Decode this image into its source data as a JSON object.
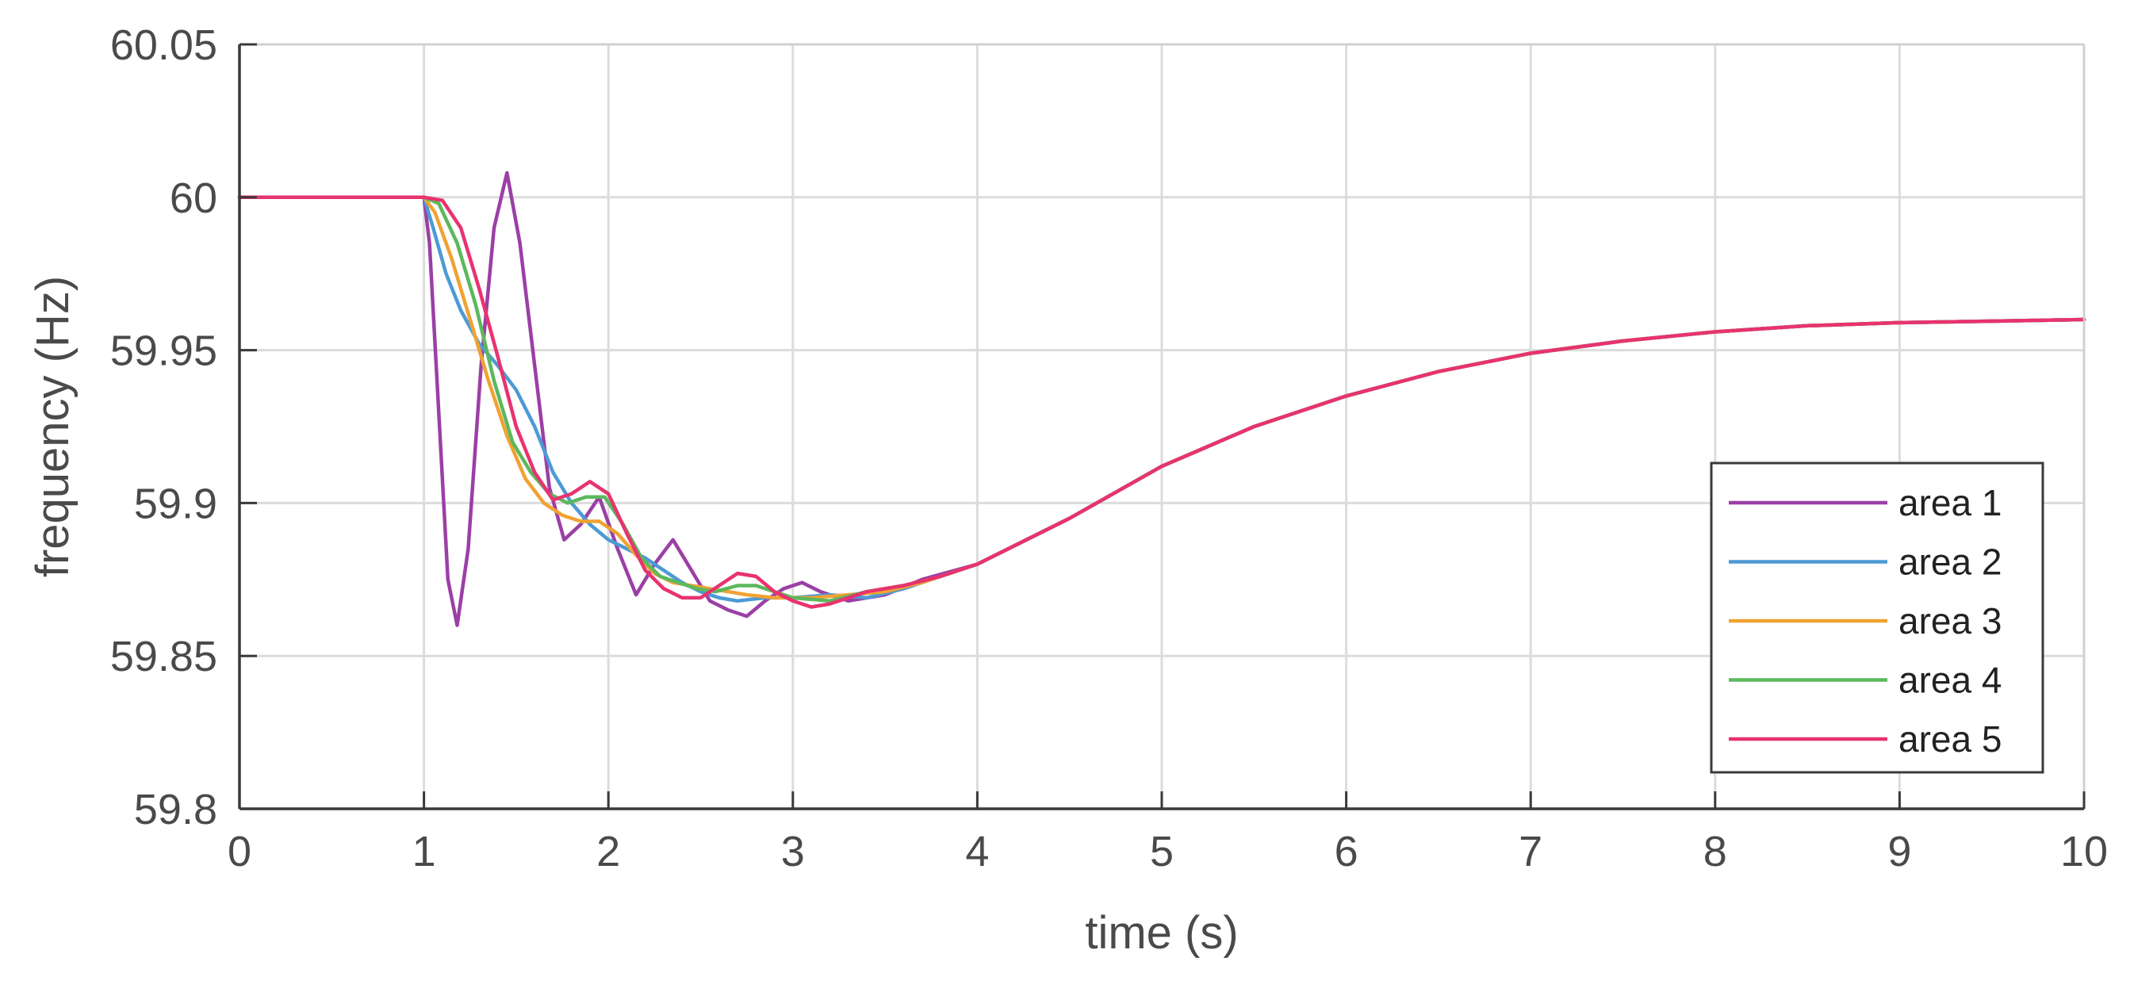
{
  "chart_data": {
    "type": "line",
    "title": "",
    "xlabel": "time (s)",
    "ylabel": "frequency (Hz)",
    "xlim": [
      0,
      10
    ],
    "ylim": [
      59.8,
      60.05
    ],
    "xticks": [
      0,
      1,
      2,
      3,
      4,
      5,
      6,
      7,
      8,
      9,
      10
    ],
    "xtick_labels": [
      "0",
      "1",
      "2",
      "3",
      "4",
      "5",
      "6",
      "7",
      "8",
      "9",
      "10"
    ],
    "yticks": [
      59.8,
      59.85,
      59.9,
      59.95,
      60,
      60.05
    ],
    "ytick_labels": [
      "59.8",
      "59.85",
      "59.9",
      "59.95",
      "60",
      "60.05"
    ],
    "grid": true,
    "legend_position": "lower-right",
    "series": [
      {
        "name": "area 1",
        "color": "#9b3fa6",
        "points": [
          [
            0,
            60
          ],
          [
            1,
            60
          ],
          [
            1.03,
            59.985
          ],
          [
            1.08,
            59.93
          ],
          [
            1.13,
            59.875
          ],
          [
            1.18,
            59.86
          ],
          [
            1.24,
            59.885
          ],
          [
            1.31,
            59.945
          ],
          [
            1.38,
            59.99
          ],
          [
            1.45,
            60.008
          ],
          [
            1.52,
            59.985
          ],
          [
            1.6,
            59.945
          ],
          [
            1.68,
            59.905
          ],
          [
            1.76,
            59.888
          ],
          [
            1.85,
            59.893
          ],
          [
            1.95,
            59.902
          ],
          [
            2.05,
            59.885
          ],
          [
            2.15,
            59.87
          ],
          [
            2.25,
            59.88
          ],
          [
            2.35,
            59.888
          ],
          [
            2.45,
            59.878
          ],
          [
            2.55,
            59.868
          ],
          [
            2.65,
            59.865
          ],
          [
            2.75,
            59.863
          ],
          [
            2.85,
            59.868
          ],
          [
            2.95,
            59.872
          ],
          [
            3.05,
            59.874
          ],
          [
            3.15,
            59.871
          ],
          [
            3.3,
            59.868
          ],
          [
            3.5,
            59.87
          ],
          [
            3.7,
            59.875
          ],
          [
            4,
            59.88
          ],
          [
            4.5,
            59.895
          ],
          [
            5,
            59.912
          ],
          [
            5.5,
            59.925
          ],
          [
            6,
            59.935
          ],
          [
            6.5,
            59.943
          ],
          [
            7,
            59.949
          ],
          [
            7.5,
            59.953
          ],
          [
            8,
            59.956
          ],
          [
            8.5,
            59.958
          ],
          [
            9,
            59.959
          ],
          [
            9.5,
            59.9595
          ],
          [
            10,
            59.96
          ]
        ]
      },
      {
        "name": "area 2",
        "color": "#4c9ad6",
        "points": [
          [
            0,
            60
          ],
          [
            1,
            60
          ],
          [
            1.05,
            59.99
          ],
          [
            1.12,
            59.975
          ],
          [
            1.2,
            59.963
          ],
          [
            1.3,
            59.952
          ],
          [
            1.4,
            59.945
          ],
          [
            1.5,
            59.937
          ],
          [
            1.6,
            59.925
          ],
          [
            1.7,
            59.91
          ],
          [
            1.8,
            59.9
          ],
          [
            1.9,
            59.893
          ],
          [
            2,
            59.888
          ],
          [
            2.1,
            59.885
          ],
          [
            2.2,
            59.882
          ],
          [
            2.3,
            59.878
          ],
          [
            2.4,
            59.874
          ],
          [
            2.5,
            59.871
          ],
          [
            2.6,
            59.869
          ],
          [
            2.7,
            59.868
          ],
          [
            2.85,
            59.869
          ],
          [
            3,
            59.869
          ],
          [
            3.2,
            59.87
          ],
          [
            3.4,
            59.869
          ],
          [
            3.6,
            59.872
          ],
          [
            3.8,
            59.876
          ],
          [
            4,
            59.88
          ],
          [
            4.5,
            59.895
          ],
          [
            5,
            59.912
          ],
          [
            5.5,
            59.925
          ],
          [
            6,
            59.935
          ],
          [
            6.5,
            59.943
          ],
          [
            7,
            59.949
          ],
          [
            7.5,
            59.953
          ],
          [
            8,
            59.956
          ],
          [
            8.5,
            59.958
          ],
          [
            9,
            59.959
          ],
          [
            9.5,
            59.9595
          ],
          [
            10,
            59.96
          ]
        ]
      },
      {
        "name": "area 3",
        "color": "#f0a232",
        "points": [
          [
            0,
            60
          ],
          [
            1,
            60
          ],
          [
            1.06,
            59.995
          ],
          [
            1.15,
            59.98
          ],
          [
            1.25,
            59.96
          ],
          [
            1.35,
            59.94
          ],
          [
            1.45,
            59.922
          ],
          [
            1.55,
            59.908
          ],
          [
            1.65,
            59.9
          ],
          [
            1.75,
            59.896
          ],
          [
            1.85,
            59.894
          ],
          [
            1.95,
            59.894
          ],
          [
            2.05,
            59.89
          ],
          [
            2.15,
            59.883
          ],
          [
            2.25,
            59.877
          ],
          [
            2.35,
            59.874
          ],
          [
            2.45,
            59.873
          ],
          [
            2.55,
            59.872
          ],
          [
            2.65,
            59.871
          ],
          [
            2.75,
            59.87
          ],
          [
            2.9,
            59.869
          ],
          [
            3.1,
            59.869
          ],
          [
            3.3,
            59.87
          ],
          [
            3.5,
            59.871
          ],
          [
            3.7,
            59.874
          ],
          [
            4,
            59.88
          ],
          [
            4.5,
            59.895
          ],
          [
            5,
            59.912
          ],
          [
            5.5,
            59.925
          ],
          [
            6,
            59.935
          ],
          [
            6.5,
            59.943
          ],
          [
            7,
            59.949
          ],
          [
            7.5,
            59.953
          ],
          [
            8,
            59.956
          ],
          [
            8.5,
            59.958
          ],
          [
            9,
            59.959
          ],
          [
            9.5,
            59.9595
          ],
          [
            10,
            59.96
          ]
        ]
      },
      {
        "name": "area 4",
        "color": "#5cb85c",
        "points": [
          [
            0,
            60
          ],
          [
            1,
            60
          ],
          [
            1.08,
            59.998
          ],
          [
            1.18,
            59.985
          ],
          [
            1.28,
            59.965
          ],
          [
            1.38,
            59.94
          ],
          [
            1.48,
            59.92
          ],
          [
            1.58,
            59.91
          ],
          [
            1.68,
            59.903
          ],
          [
            1.78,
            59.9
          ],
          [
            1.88,
            59.902
          ],
          [
            1.98,
            59.902
          ],
          [
            2.08,
            59.893
          ],
          [
            2.18,
            59.882
          ],
          [
            2.28,
            59.876
          ],
          [
            2.38,
            59.874
          ],
          [
            2.48,
            59.872
          ],
          [
            2.58,
            59.871
          ],
          [
            2.7,
            59.873
          ],
          [
            2.8,
            59.873
          ],
          [
            2.9,
            59.871
          ],
          [
            3,
            59.869
          ],
          [
            3.2,
            59.868
          ],
          [
            3.4,
            59.871
          ],
          [
            3.6,
            59.873
          ],
          [
            3.8,
            59.876
          ],
          [
            4,
            59.88
          ],
          [
            4.5,
            59.895
          ],
          [
            5,
            59.912
          ],
          [
            5.5,
            59.925
          ],
          [
            6,
            59.935
          ],
          [
            6.5,
            59.943
          ],
          [
            7,
            59.949
          ],
          [
            7.5,
            59.953
          ],
          [
            8,
            59.956
          ],
          [
            8.5,
            59.958
          ],
          [
            9,
            59.959
          ],
          [
            9.5,
            59.9595
          ],
          [
            10,
            59.96
          ]
        ]
      },
      {
        "name": "area 5",
        "color": "#e8336f",
        "points": [
          [
            0,
            60
          ],
          [
            1,
            60
          ],
          [
            1.1,
            59.999
          ],
          [
            1.2,
            59.99
          ],
          [
            1.3,
            59.97
          ],
          [
            1.4,
            59.948
          ],
          [
            1.5,
            59.925
          ],
          [
            1.6,
            59.91
          ],
          [
            1.7,
            59.901
          ],
          [
            1.8,
            59.903
          ],
          [
            1.9,
            59.907
          ],
          [
            2,
            59.903
          ],
          [
            2.1,
            59.89
          ],
          [
            2.2,
            59.878
          ],
          [
            2.3,
            59.872
          ],
          [
            2.4,
            59.869
          ],
          [
            2.5,
            59.869
          ],
          [
            2.6,
            59.873
          ],
          [
            2.7,
            59.877
          ],
          [
            2.8,
            59.876
          ],
          [
            2.9,
            59.871
          ],
          [
            3,
            59.868
          ],
          [
            3.1,
            59.866
          ],
          [
            3.2,
            59.867
          ],
          [
            3.4,
            59.871
          ],
          [
            3.6,
            59.873
          ],
          [
            3.8,
            59.876
          ],
          [
            4,
            59.88
          ],
          [
            4.5,
            59.895
          ],
          [
            5,
            59.912
          ],
          [
            5.5,
            59.925
          ],
          [
            6,
            59.935
          ],
          [
            6.5,
            59.943
          ],
          [
            7,
            59.949
          ],
          [
            7.5,
            59.953
          ],
          [
            8,
            59.956
          ],
          [
            8.5,
            59.958
          ],
          [
            9,
            59.959
          ],
          [
            9.5,
            59.9595
          ],
          [
            10,
            59.96
          ]
        ]
      }
    ]
  }
}
